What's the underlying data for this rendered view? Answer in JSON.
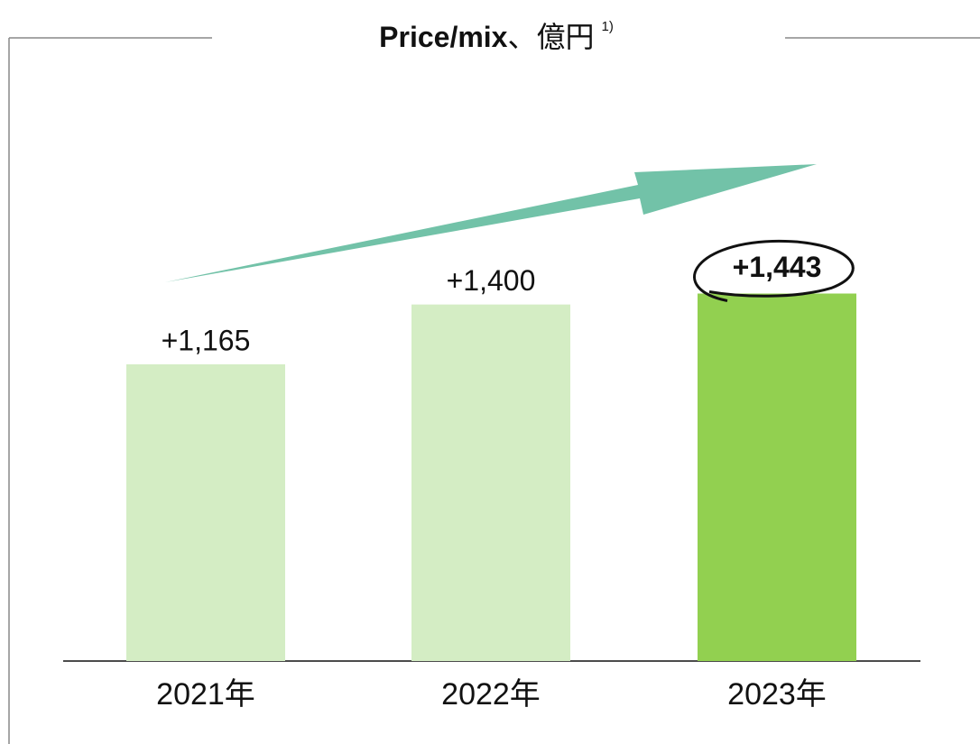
{
  "chart_data": {
    "type": "bar",
    "title_parts": [
      "Price/mix",
      "、億円"
    ],
    "title_footnote": "1)",
    "categories": [
      "2021年",
      "2022年",
      "2023年"
    ],
    "values": [
      1165,
      1400,
      1443
    ],
    "value_labels": [
      "+1,165",
      "+1,400",
      "+1,443"
    ],
    "colors": [
      "#d4edc4",
      "#d4edc4",
      "#92d050"
    ]
  }
}
